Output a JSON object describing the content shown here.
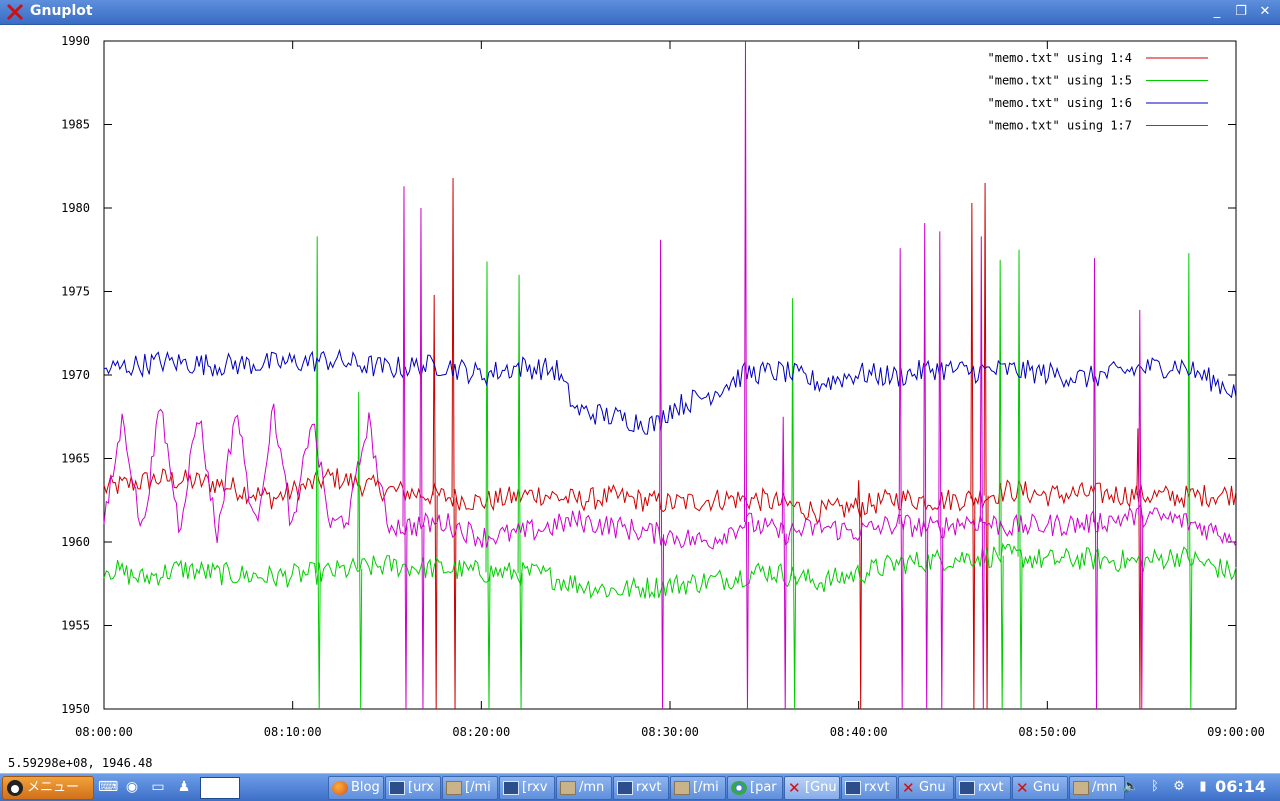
{
  "window": {
    "title": "Gnuplot",
    "controls": {
      "minimize": "_",
      "restore": "❐",
      "close": "✕"
    }
  },
  "chart_data": {
    "type": "line",
    "title": "",
    "xlabel": "",
    "ylabel": "",
    "x_tick_labels": [
      "08:00:00",
      "08:10:00",
      "08:20:00",
      "08:30:00",
      "08:40:00",
      "08:50:00",
      "09:00:00"
    ],
    "y_ticks": [
      1950,
      1955,
      1960,
      1965,
      1970,
      1975,
      1980,
      1985,
      1990
    ],
    "xlim_minutes": [
      0,
      60
    ],
    "ylim": [
      1950,
      1990
    ],
    "grid": false,
    "legend_position": "top-right",
    "series": [
      {
        "name": "\"memo.txt\" using 1:4",
        "color": "#cc0000",
        "points": [
          [
            0,
            1963.2
          ],
          [
            3,
            1963.8
          ],
          [
            6,
            1963.5
          ],
          [
            9,
            1962.6
          ],
          [
            12,
            1963.9
          ],
          [
            15,
            1963.1
          ],
          [
            17.5,
            1962.8
          ],
          [
            20,
            1962.4
          ],
          [
            23,
            1962.9
          ],
          [
            25,
            1962.5
          ],
          [
            27,
            1962.7
          ],
          [
            30,
            1962.3
          ],
          [
            33,
            1962.6
          ],
          [
            35,
            1962.5
          ],
          [
            38,
            1961.8
          ],
          [
            40,
            1962.1
          ],
          [
            42,
            1962.6
          ],
          [
            44,
            1962.5
          ],
          [
            46,
            1962.6
          ],
          [
            48,
            1963.1
          ],
          [
            50,
            1962.8
          ],
          [
            52,
            1962.9
          ],
          [
            55,
            1962.8
          ],
          [
            57,
            1962.7
          ],
          [
            60,
            1962.9
          ]
        ],
        "spikes": [
          [
            17.5,
            1974.8
          ],
          [
            18.5,
            1981.8
          ],
          [
            40,
            1963.7
          ],
          [
            46,
            1980.3
          ],
          [
            46.7,
            1981.5
          ],
          [
            54.8,
            1966.8
          ]
        ]
      },
      {
        "name": "\"memo.txt\" using 1:5",
        "color": "#00cc00",
        "points": [
          [
            0,
            1958.5
          ],
          [
            2,
            1957.8
          ],
          [
            4,
            1958.4
          ],
          [
            6,
            1958.1
          ],
          [
            9,
            1957.9
          ],
          [
            12,
            1958.2
          ],
          [
            15,
            1958.6
          ],
          [
            18,
            1958.4
          ],
          [
            20,
            1958.2
          ],
          [
            23,
            1958.1
          ],
          [
            25,
            1957.5
          ],
          [
            27,
            1957.1
          ],
          [
            30,
            1957.4
          ],
          [
            33,
            1957.8
          ],
          [
            35,
            1958.3
          ],
          [
            38,
            1957.6
          ],
          [
            40,
            1958.1
          ],
          [
            42,
            1958.7
          ],
          [
            44,
            1958.9
          ],
          [
            46,
            1959.1
          ],
          [
            48,
            1959.2
          ],
          [
            50,
            1958.9
          ],
          [
            52,
            1959.0
          ],
          [
            55,
            1958.8
          ],
          [
            57,
            1959.2
          ],
          [
            60,
            1958.1
          ]
        ],
        "spikes": [
          [
            11.3,
            1978.3
          ],
          [
            13.5,
            1969.0
          ],
          [
            20.3,
            1976.8
          ],
          [
            22,
            1976.0
          ],
          [
            36.5,
            1974.6
          ],
          [
            47.5,
            1976.9
          ],
          [
            48.5,
            1977.5
          ],
          [
            57.5,
            1977.3
          ]
        ]
      },
      {
        "name": "\"memo.txt\" using 1:6",
        "color": "#0000bb",
        "points": [
          [
            0,
            1970.3
          ],
          [
            3,
            1970.8
          ],
          [
            6,
            1970.6
          ],
          [
            9,
            1970.7
          ],
          [
            12,
            1970.9
          ],
          [
            15,
            1970.4
          ],
          [
            18,
            1970.6
          ],
          [
            20,
            1970.0
          ],
          [
            22,
            1970.5
          ],
          [
            24,
            1970.3
          ],
          [
            25,
            1967.9
          ],
          [
            27,
            1967.5
          ],
          [
            29.3,
            1967.0
          ],
          [
            30,
            1968.0
          ],
          [
            32,
            1968.8
          ],
          [
            34,
            1970.1
          ],
          [
            36,
            1970.2
          ],
          [
            38,
            1969.5
          ],
          [
            40,
            1970.1
          ],
          [
            42,
            1969.9
          ],
          [
            44,
            1970.4
          ],
          [
            46,
            1970.2
          ],
          [
            48,
            1970.3
          ],
          [
            50,
            1970.1
          ],
          [
            52,
            1969.8
          ],
          [
            55,
            1970.4
          ],
          [
            57,
            1970.6
          ],
          [
            60,
            1969.0
          ]
        ],
        "spikes": []
      },
      {
        "name": "\"memo.txt\" using 1:7",
        "color": "#cc00cc",
        "points": [
          [
            0,
            1961.0
          ],
          [
            1,
            1967.5
          ],
          [
            2,
            1960.5
          ],
          [
            3,
            1968.2
          ],
          [
            4,
            1960.8
          ],
          [
            5,
            1967.9
          ],
          [
            6,
            1960.3
          ],
          [
            7,
            1968.1
          ],
          [
            8,
            1960.7
          ],
          [
            9,
            1968.0
          ],
          [
            10,
            1960.5
          ],
          [
            11,
            1967.6
          ],
          [
            12,
            1960.9
          ],
          [
            13,
            1961.6
          ],
          [
            14,
            1967.4
          ],
          [
            15,
            1961.1
          ],
          [
            16,
            1960.9
          ],
          [
            18,
            1961.2
          ],
          [
            20,
            1960.3
          ],
          [
            22,
            1960.5
          ],
          [
            24,
            1961.0
          ],
          [
            25,
            1961.3
          ],
          [
            32,
            1960.0
          ],
          [
            34,
            1961.2
          ],
          [
            36,
            1960.5
          ],
          [
            38,
            1960.9
          ],
          [
            40,
            1960.6
          ],
          [
            42,
            1961.1
          ],
          [
            44,
            1960.8
          ],
          [
            46,
            1961.3
          ],
          [
            48,
            1960.9
          ],
          [
            50,
            1961.0
          ],
          [
            52,
            1961.1
          ],
          [
            55,
            1961.6
          ],
          [
            57,
            1961.3
          ],
          [
            60,
            1960.3
          ]
        ],
        "spikes": [
          [
            15.9,
            1981.3
          ],
          [
            16.8,
            1980.0
          ],
          [
            29.5,
            1978.1
          ],
          [
            34,
            1990.0
          ],
          [
            36,
            1967.5
          ],
          [
            42.2,
            1977.6
          ],
          [
            43.5,
            1979.1
          ],
          [
            44.3,
            1978.6
          ],
          [
            46.5,
            1978.3
          ],
          [
            52.5,
            1977.0
          ],
          [
            54.9,
            1973.9
          ]
        ]
      }
    ]
  },
  "status_readout": "5.59298e+08,  1946.48",
  "taskbar": {
    "menu_label": "メニュー",
    "tasks": [
      {
        "label": "Blog",
        "icon": "firefox-icon",
        "active": false
      },
      {
        "label": "[urx",
        "icon": "terminal-icon",
        "active": false
      },
      {
        "label": "[/mi",
        "icon": "folder-icon",
        "active": false
      },
      {
        "label": "[rxv",
        "icon": "terminal-icon",
        "active": false
      },
      {
        "label": "/mn",
        "icon": "folder-icon",
        "active": false
      },
      {
        "label": "rxvt",
        "icon": "terminal-icon",
        "active": false
      },
      {
        "label": "[/mi",
        "icon": "folder-icon",
        "active": false
      },
      {
        "label": "[par",
        "icon": "chrome-icon",
        "active": false
      },
      {
        "label": "[Gnu",
        "icon": "gnuplot-icon",
        "active": true
      },
      {
        "label": "rxvt",
        "icon": "terminal-icon",
        "active": false
      },
      {
        "label": "Gnu",
        "icon": "gnuplot-icon",
        "active": false
      },
      {
        "label": "rxvt",
        "icon": "terminal-icon",
        "active": false
      },
      {
        "label": "Gnu",
        "icon": "gnuplot-icon",
        "active": false
      },
      {
        "label": "/mn",
        "icon": "folder-icon",
        "active": false
      }
    ],
    "clock": "06:14"
  }
}
